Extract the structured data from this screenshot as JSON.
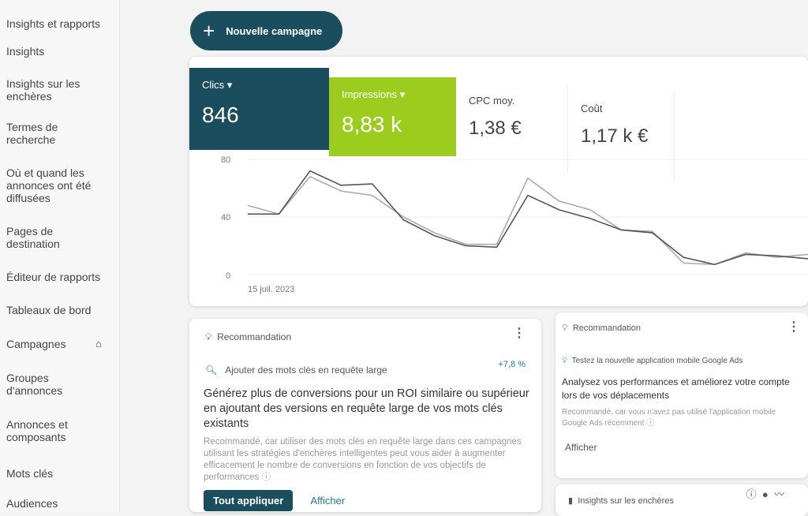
{
  "sidebar": {
    "items": [
      {
        "label": "Insights et rapports"
      },
      {
        "label": "Insights"
      },
      {
        "label": "Insights sur les enchères"
      },
      {
        "label": "Termes de recherche"
      },
      {
        "label": "Où et quand les annonces ont été diffusées"
      },
      {
        "label": "Pages de destination"
      },
      {
        "label": "Éditeur de rapports"
      },
      {
        "label": "Tableaux de bord"
      },
      {
        "label": "Campagnes",
        "icon": "home-icon"
      },
      {
        "label": "Groupes d'annonces"
      },
      {
        "label": "Annonces et composants"
      },
      {
        "label": "Mots clés"
      },
      {
        "label": "Audiences"
      }
    ]
  },
  "new_campaign": "Nouvelle campagne",
  "metrics": [
    {
      "label": "Clics",
      "value": "846",
      "color": "#1a4e5e"
    },
    {
      "label": "Impressions",
      "value": "8,83 k",
      "color": "#9ccc1e"
    },
    {
      "label": "CPC moy.",
      "value": "1,38 €"
    },
    {
      "label": "Coût",
      "value": "1,17 k €"
    }
  ],
  "chart_data": {
    "type": "line",
    "y_ticks": [
      "80",
      "40",
      "0"
    ],
    "ylim": [
      0,
      80
    ],
    "x_label_first": "15 juil. 2023",
    "series": [
      {
        "name": "Clics",
        "color": "#555555",
        "values": [
          42,
          42,
          72,
          62,
          63,
          38,
          27,
          20,
          19,
          55,
          45,
          39,
          31,
          29,
          12,
          7,
          14,
          13,
          11
        ]
      },
      {
        "name": "Impressions",
        "color": "#aaaaaa",
        "values": [
          48,
          42,
          68,
          58,
          55,
          40,
          29,
          21,
          21,
          67,
          51,
          45,
          31,
          30,
          8,
          7,
          15,
          12,
          14
        ]
      }
    ]
  },
  "rec1": {
    "header": "Recommandation",
    "title": "Ajouter des mots clés en requête large",
    "uplift": "+7,8 %",
    "headline": "Générez plus de conversions pour un ROI similaire ou supérieur en ajoutant des versions en requête large de vos mots clés existants",
    "desc": "Recommandé, car utiliser des mots clés en requête large dans ces campagnes utilisant les stratégies d'enchères intelligentes peut vous aider à augmenter efficacement le nombre de conversions en fonction de vos objectifs de performances",
    "apply": "Tout appliquer",
    "view": "Afficher"
  },
  "rec2": {
    "header": "Recommandation",
    "title": "Testez la nouvelle application mobile Google Ads",
    "headline": "Analysez vos performances et améliorez votre compte lors de vos déplacements",
    "desc": "Recommandé, car vous n'avez pas utilisé l'application mobile Google Ads récemment",
    "view": "Afficher"
  },
  "auction": {
    "title": "Insights sur les enchères"
  }
}
